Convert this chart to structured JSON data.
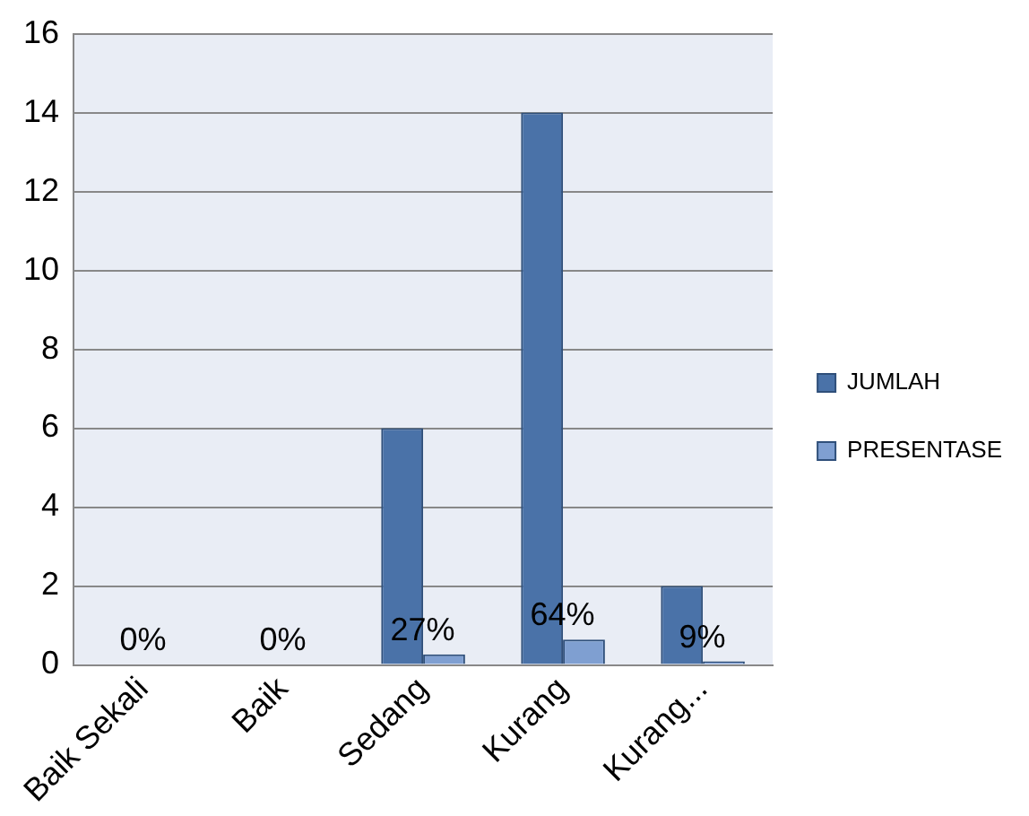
{
  "chart_data": {
    "type": "bar",
    "categories": [
      "Baik Sekali",
      "Baik",
      "Sedang",
      "Kurang",
      "Kurang..."
    ],
    "series": [
      {
        "name": "JUMLAH",
        "color": "#4a72a8",
        "values": [
          0,
          0,
          6,
          14,
          2
        ]
      },
      {
        "name": "PRESENTASE",
        "color": "#7f9fd1",
        "values": [
          0,
          0,
          0.27,
          0.64,
          0.09
        ],
        "value_labels": [
          "0%",
          "0%",
          "27%",
          "64%",
          "9%"
        ]
      }
    ],
    "ylim": [
      0,
      16
    ],
    "yticks": [
      0,
      2,
      4,
      6,
      8,
      10,
      12,
      14,
      16
    ],
    "grid": "y",
    "legend": "right"
  }
}
